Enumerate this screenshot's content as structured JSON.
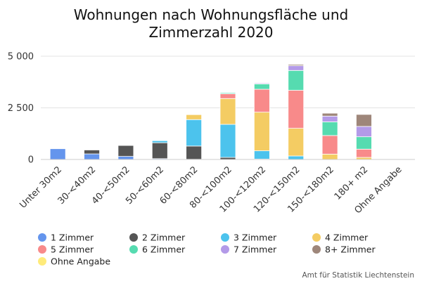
{
  "chart_data": {
    "type": "bar",
    "stacked": true,
    "title_line1": "Wohnungen nach Wohnungsfläche und",
    "title_line2": "Zimmerzahl 2020",
    "credit": "Amt für Statistik Liechtenstein",
    "ylim": [
      0,
      5000
    ],
    "yticks": [
      {
        "value": 0,
        "label": "0"
      },
      {
        "value": 2500,
        "label": "2 500"
      },
      {
        "value": 5000,
        "label": "5 000"
      }
    ],
    "grid": true,
    "legend_position": "bottom",
    "categories": [
      "Unter 30m2",
      "30-<40m2",
      "40-<50m2",
      "50-<60m2",
      "60-<80m2",
      "80-<100m2",
      "100-<120m2",
      "120-<150m2",
      "150-<180m2",
      "180+ m2",
      "Ohne Angabe"
    ],
    "series": [
      {
        "name": "1 Zimmer",
        "color": "#6495ed",
        "values": [
          520,
          270,
          150,
          40,
          10,
          0,
          0,
          0,
          0,
          0,
          0
        ]
      },
      {
        "name": "2 Zimmer",
        "color": "#555555",
        "values": [
          0,
          190,
          530,
          770,
          640,
          100,
          20,
          0,
          0,
          0,
          0
        ]
      },
      {
        "name": "3 Zimmer",
        "color": "#4cc3ed",
        "values": [
          0,
          0,
          20,
          100,
          1280,
          1600,
          400,
          170,
          0,
          0,
          0
        ]
      },
      {
        "name": "4 Zimmer",
        "color": "#f4cc63",
        "values": [
          0,
          0,
          0,
          0,
          240,
          1250,
          1870,
          1340,
          260,
          100,
          0
        ]
      },
      {
        "name": "5 Zimmer",
        "color": "#f88a8a",
        "values": [
          0,
          0,
          0,
          0,
          0,
          230,
          1110,
          1840,
          900,
          400,
          0
        ]
      },
      {
        "name": "6 Zimmer",
        "color": "#56dbb0",
        "values": [
          0,
          0,
          0,
          0,
          0,
          50,
          260,
          960,
          660,
          600,
          0
        ]
      },
      {
        "name": "7 Zimmer",
        "color": "#b39ae8",
        "values": [
          0,
          0,
          0,
          0,
          0,
          0,
          40,
          230,
          280,
          500,
          0
        ]
      },
      {
        "name": "8+ Zimmer",
        "color": "#9e867a",
        "values": [
          0,
          0,
          0,
          0,
          0,
          0,
          0,
          60,
          140,
          580,
          0
        ]
      },
      {
        "name": "Ohne Angabe",
        "color": "#ffeb7a",
        "values": [
          0,
          0,
          0,
          0,
          0,
          0,
          0,
          0,
          0,
          0,
          0
        ]
      }
    ]
  }
}
